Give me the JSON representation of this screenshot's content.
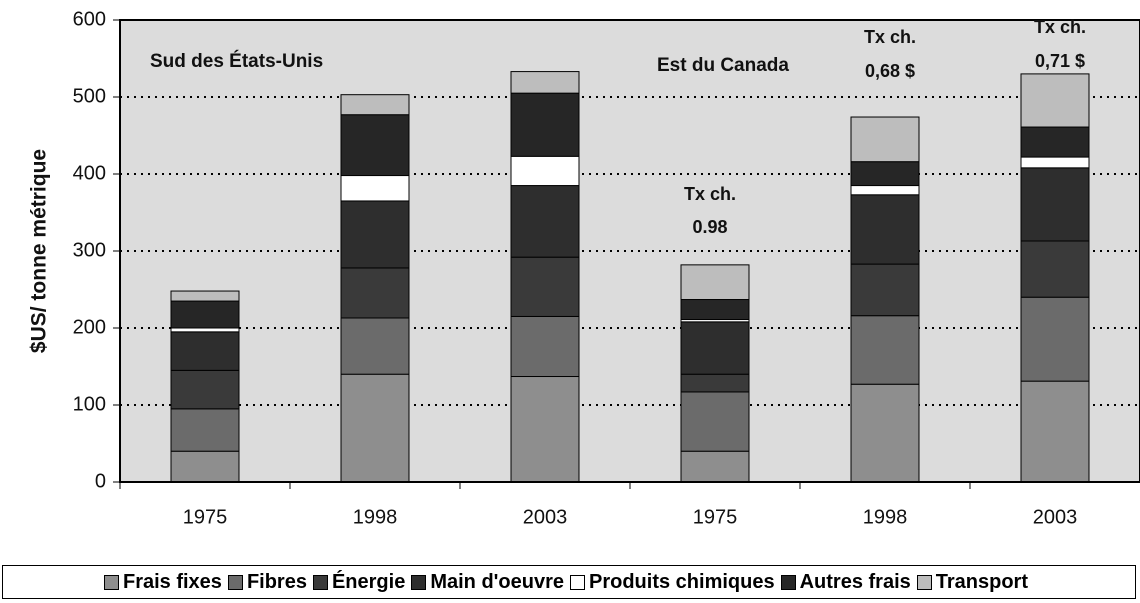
{
  "chart_data": {
    "type": "stacked_bar",
    "ylabel": "$US/ tonne métrique",
    "categories": [
      "1975",
      "1998",
      "2003",
      "1975",
      "1998",
      "2003"
    ],
    "ylim": [
      0,
      600
    ],
    "yticks": [
      0,
      100,
      200,
      300,
      400,
      500,
      600
    ],
    "grid": true,
    "legend": "bottom",
    "series": [
      {
        "name": "Frais fixes",
        "color": "#8e8e8e",
        "values": [
          40,
          140,
          137,
          40,
          127,
          131
        ]
      },
      {
        "name": "Fibres",
        "color": "#6b6b6b",
        "values": [
          55,
          73,
          78,
          77,
          89,
          109
        ]
      },
      {
        "name": "Énergie",
        "color": "#3a3a3a",
        "values": [
          50,
          65,
          77,
          23,
          67,
          73
        ]
      },
      {
        "name": "Main d'oeuvre",
        "color": "#2e2e2e",
        "values": [
          50,
          87,
          93,
          68,
          90,
          95
        ]
      },
      {
        "name": "Produits chimiques",
        "color": "#ffffff",
        "values": [
          5,
          33,
          38,
          3,
          12,
          14
        ]
      },
      {
        "name": "Autres frais",
        "color": "#262626",
        "values": [
          35,
          79,
          82,
          26,
          31,
          39
        ]
      },
      {
        "name": "Transport",
        "color": "#bdbdbd",
        "values": [
          13,
          26,
          28,
          45,
          58,
          69
        ]
      }
    ],
    "annotations": [
      "Sud des États-Unis",
      "Est du Canada",
      "Tx ch.",
      "0.98",
      "Tx ch.",
      "0,68 $",
      "Tx ch.",
      "0,71 $"
    ]
  }
}
